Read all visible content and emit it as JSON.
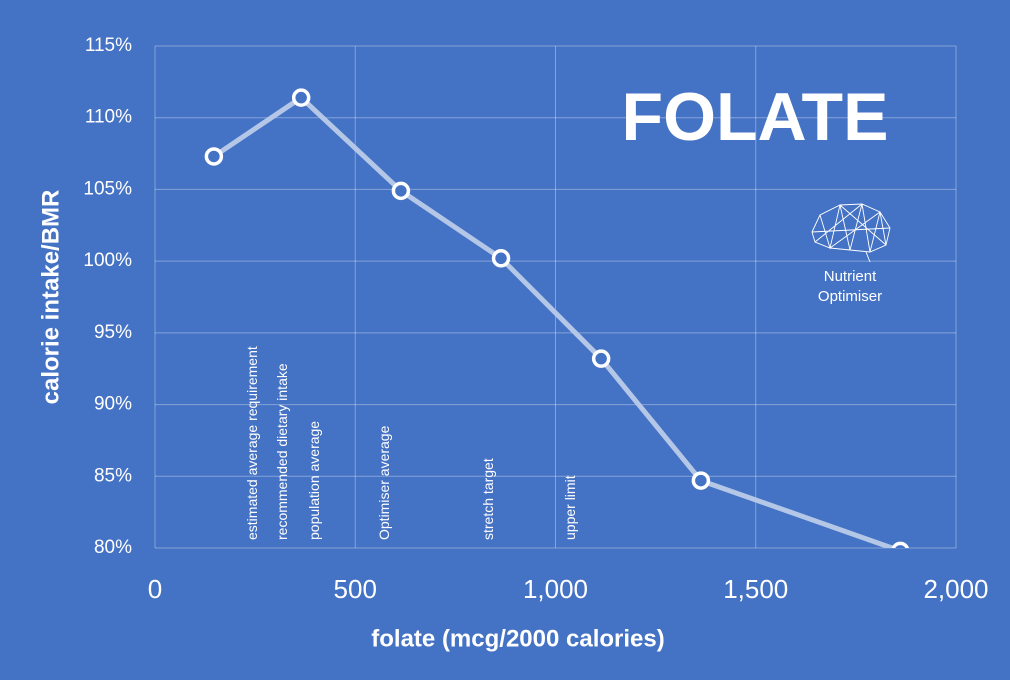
{
  "chart_data": {
    "type": "line",
    "title": "FOLATE",
    "logo_text": [
      "Nutrient",
      "Optimiser"
    ],
    "x_label": "folate (mcg/2000 calories)",
    "y_label": "calorie intake/BMR",
    "x": [
      147,
      365,
      614,
      864,
      1114,
      1363,
      1861
    ],
    "series": [
      {
        "name": "folate",
        "color": "#b4c7e7",
        "values": [
          107.3,
          111.4,
          104.9,
          100.2,
          93.2,
          84.7,
          79.8
        ]
      }
    ],
    "xlim": [
      0,
      2000
    ],
    "xticks": [
      0,
      500,
      {
        "value": 1000,
        "label": "1,000"
      },
      {
        "value": 1500,
        "label": "1,500"
      },
      {
        "value": 2000,
        "label": "2,000"
      }
    ],
    "ylim": [
      80,
      115
    ],
    "yticks": [
      {
        "value": 80,
        "label": "80%"
      },
      {
        "value": 85,
        "label": "85%"
      },
      {
        "value": 90,
        "label": "90%"
      },
      {
        "value": 95,
        "label": "95%"
      },
      {
        "value": 100,
        "label": "100%"
      },
      {
        "value": 105,
        "label": "105%"
      },
      {
        "value": 110,
        "label": "110%"
      },
      {
        "value": 115,
        "label": "115%"
      }
    ],
    "grid": true,
    "annotations": [
      {
        "text": "estimated average requirement",
        "x": 245
      },
      {
        "text": "recommended dietary  intake",
        "x": 320
      },
      {
        "text": "population average",
        "x": 400
      },
      {
        "text": "Optimiser average",
        "x": 575
      },
      {
        "text": "stretch target",
        "x": 835
      },
      {
        "text": "upper limit",
        "x": 1040
      }
    ]
  }
}
